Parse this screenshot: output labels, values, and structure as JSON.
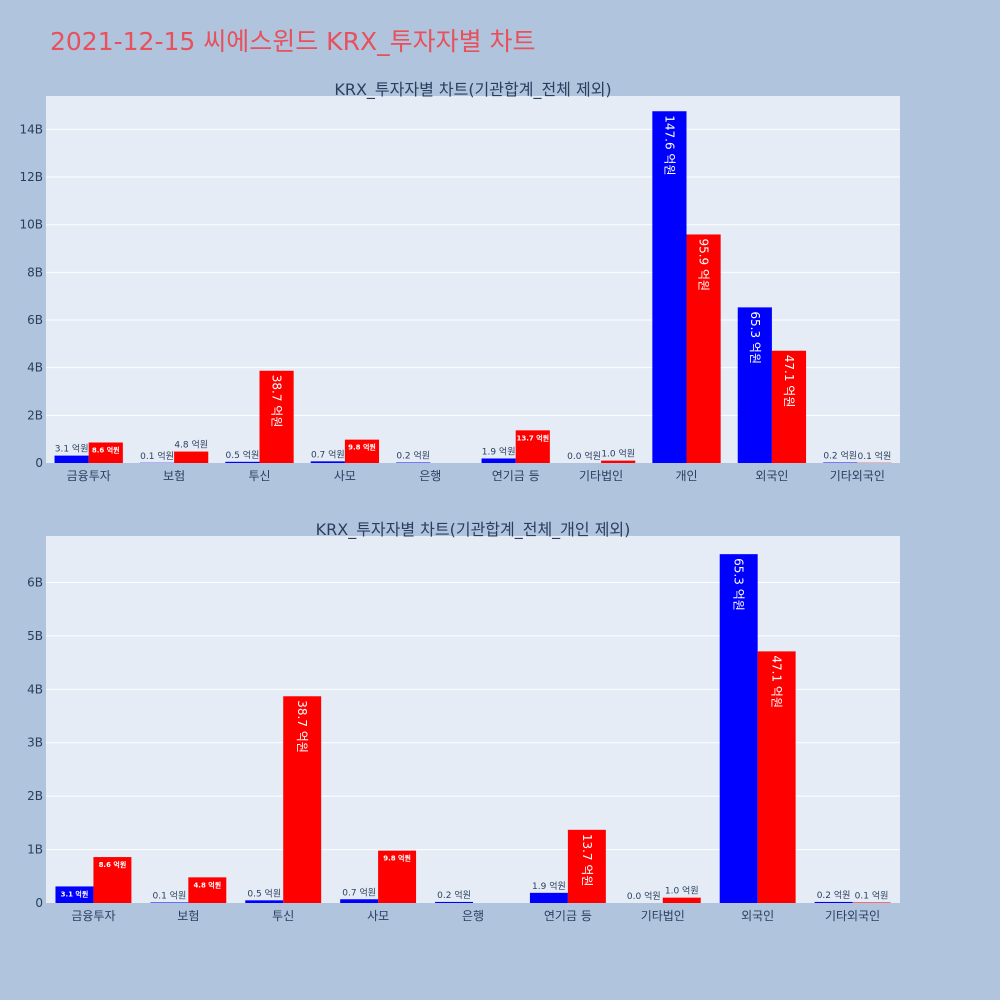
{
  "page": {
    "title": "2021-12-15 씨에스윈드 KRX_투자자별 차트"
  },
  "colors": {
    "buy": "#0000ff",
    "sell": "#ff0000",
    "plot_bg": "#e5ecf6",
    "page_bg": "#b0c4de",
    "title": "#e8505b",
    "text": "#2a3f5f"
  },
  "chart_data": [
    {
      "type": "bar",
      "title": "KRX_투자자별 차트(기관합계_전체 제외)",
      "categories": [
        "금융투자",
        "보험",
        "투신",
        "사모",
        "은행",
        "연기금 등",
        "기타법인",
        "개인",
        "외국인",
        "기타외국인"
      ],
      "series": [
        {
          "color": "#0000ff",
          "values": [
            0.31,
            0.01,
            0.05,
            0.07,
            0.02,
            0.19,
            0.0,
            14.76,
            6.53,
            0.02
          ],
          "labels": [
            "3.1 억원",
            "0.1 억원",
            "0.5 억원",
            "0.7 억원",
            "0.2 억원",
            "1.9 억원",
            "0.0 억원",
            "147.6 억원",
            "65.3 억원",
            "0.2 억원"
          ]
        },
        {
          "color": "#ff0000",
          "values": [
            0.86,
            0.48,
            3.87,
            0.98,
            0.0,
            1.37,
            0.1,
            9.59,
            4.71,
            0.01
          ],
          "labels": [
            "8.6 억원",
            "4.8 억원",
            "38.7 억원",
            "9.8 억원",
            "",
            "13.7 억원",
            "1.0 억원",
            "95.9 억원",
            "47.1 억원",
            "0.1 억원"
          ]
        }
      ],
      "ylim": [
        0,
        15.4
      ],
      "yticks": [
        0,
        2,
        4,
        6,
        8,
        10,
        12,
        14
      ],
      "ytick_labels": [
        "0",
        "2B",
        "4B",
        "6B",
        "8B",
        "10B",
        "12B",
        "14B"
      ],
      "grid": true
    },
    {
      "type": "bar",
      "title": "KRX_투자자별 차트(기관합계_전체_개인 제외)",
      "categories": [
        "금융투자",
        "보험",
        "투신",
        "사모",
        "은행",
        "연기금 등",
        "기타법인",
        "외국인",
        "기타외국인"
      ],
      "series": [
        {
          "color": "#0000ff",
          "values": [
            0.31,
            0.01,
            0.05,
            0.07,
            0.02,
            0.19,
            0.0,
            6.53,
            0.02
          ],
          "labels": [
            "3.1 억원",
            "0.1 억원",
            "0.5 억원",
            "0.7 억원",
            "0.2 억원",
            "1.9 억원",
            "0.0 억원",
            "65.3 억원",
            "0.2 억원"
          ]
        },
        {
          "color": "#ff0000",
          "values": [
            0.86,
            0.48,
            3.87,
            0.98,
            0.0,
            1.37,
            0.1,
            4.71,
            0.01
          ],
          "labels": [
            "8.6 억원",
            "4.8 억원",
            "38.7 억원",
            "9.8 억원",
            "",
            "13.7 억원",
            "1.0 억원",
            "47.1 억원",
            "0.1 억원"
          ]
        }
      ],
      "ylim": [
        0,
        6.87
      ],
      "yticks": [
        0,
        1,
        2,
        3,
        4,
        5,
        6
      ],
      "ytick_labels": [
        "0",
        "1B",
        "2B",
        "3B",
        "4B",
        "5B",
        "6B"
      ],
      "grid": true
    }
  ]
}
